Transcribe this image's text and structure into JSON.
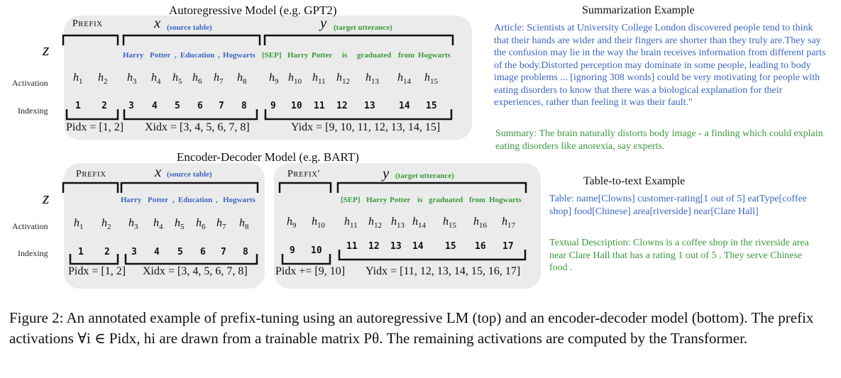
{
  "ar": {
    "title": "Autoregressive  Model  (e.g. GPT2)",
    "prefix_label": "PREFIX",
    "x_var": "x",
    "x_note": "(source table)",
    "y_var": "y",
    "y_note": "(target utterance)",
    "z": "z",
    "tokens_x": [
      "Harry",
      "Potter",
      ",",
      "Education",
      ",",
      "Hogwarts"
    ],
    "tokens_y": [
      "[SEP]",
      "Harry",
      "Potter",
      "is",
      "graduated",
      "from",
      "Hogwarts"
    ],
    "activation_label": "Activation",
    "indexing_label": "Indexing",
    "h_indices": [
      "1",
      "2",
      "3",
      "4",
      "5",
      "6",
      "7",
      "8",
      "9",
      "10",
      "11",
      "12",
      "13",
      "14",
      "15"
    ],
    "idx": [
      "1",
      "2",
      "3",
      "4",
      "5",
      "6",
      "7",
      "8",
      "9",
      "10",
      "11",
      "12",
      "13",
      "14",
      "15"
    ],
    "p_idx": "Pidx = [1, 2]",
    "x_idx": "Xidx = [3, 4, 5, 6, 7, 8]",
    "y_idx": "Yidx = [9, 10, 11, 12, 13, 14, 15]"
  },
  "ed": {
    "title": "Encoder-Decoder Model  (e.g. BART)",
    "prefix_label": "PREFIX",
    "prefix2_label": "PREFIX′",
    "x_var": "x",
    "x_note": "(source table)",
    "y_var": "y",
    "y_note": "(target utterance)",
    "z": "z",
    "tokens_x": [
      "Harry",
      "Potter",
      ",",
      "Education",
      ",",
      "Hogwarts"
    ],
    "tokens_y": [
      "[SEP]",
      "Harry",
      "Potter",
      "is",
      "graduated",
      "from",
      "Hogwarts"
    ],
    "activation_label": "Activation",
    "indexing_label": "Indexing",
    "h_enc": [
      "1",
      "2",
      "3",
      "4",
      "5",
      "6",
      "7",
      "8"
    ],
    "h_dec": [
      "9",
      "10",
      "11",
      "12",
      "13",
      "14",
      "15",
      "16",
      "17"
    ],
    "idx_enc": [
      "1",
      "2",
      "3",
      "4",
      "5",
      "6",
      "7",
      "8"
    ],
    "idx_dec": [
      "9",
      "10",
      "11",
      "12",
      "13",
      "14",
      "15",
      "16",
      "17"
    ],
    "p_idx": "Pidx = [1, 2]",
    "x_idx": "Xidx = [3, 4, 5, 6, 7, 8]",
    "p_idx2": "Pidx += [9, 10]",
    "y_idx": "Yidx = [11, 12, 13, 14, 15, 16, 17]"
  },
  "summ": {
    "title": "Summarization Example",
    "article": "Article: Scientists at University College London discovered people tend to think that their hands are wider and their fingers are shorter than they truly are.They say the confusion may lie in the way the brain receives information from different parts of the body.Distorted perception may dominate in some people, leading to body image problems ... [ignoring 308 words] could be very motivating for people with eating disorders to know that there was a biological explanation for their experiences, rather than feeling it was their fault.\"",
    "summary": "Summary: The brain naturally distorts body image - a finding which could explain eating disorders like anorexia, say experts."
  },
  "t2t": {
    "title": "Table-to-text Example",
    "table": "Table:  name[Clowns] customer-rating[1 out of 5] eatType[coffee shop] food[Chinese] area[riverside] near[Clare Hall]",
    "desc": "Textual Description: Clowns is a coffee shop in the riverside area near Clare Hall that has a rating 1 out of 5 . They serve Chinese food ."
  },
  "caption": "Figure 2:  An annotated example of prefix-tuning using an autoregressive LM (top) and an encoder-decoder model (bottom). The prefix activations ∀i ∈ Pidx, hi are drawn from a trainable matrix Pθ. The remaining activations are computed by the Transformer."
}
